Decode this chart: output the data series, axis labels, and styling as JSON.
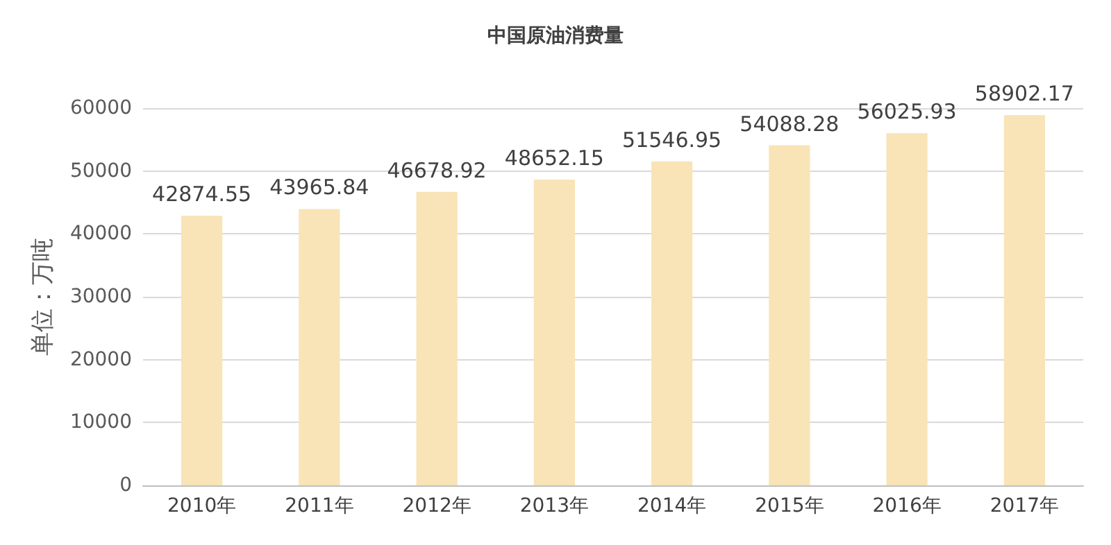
{
  "chart_data": {
    "type": "bar",
    "title": "中国原油消费量",
    "ylabel": "单位：万吨",
    "categories": [
      "2010年",
      "2011年",
      "2012年",
      "2013年",
      "2014年",
      "2015年",
      "2016年",
      "2017年"
    ],
    "values": [
      42874.55,
      43965.84,
      46678.92,
      48652.15,
      51546.95,
      54088.28,
      56025.93,
      58902.17
    ],
    "color": "#f9e4b7",
    "ylim": [
      0,
      60000
    ],
    "yticks": [
      0,
      10000,
      20000,
      30000,
      40000,
      50000,
      60000
    ],
    "grid": true,
    "data_labels": true
  }
}
